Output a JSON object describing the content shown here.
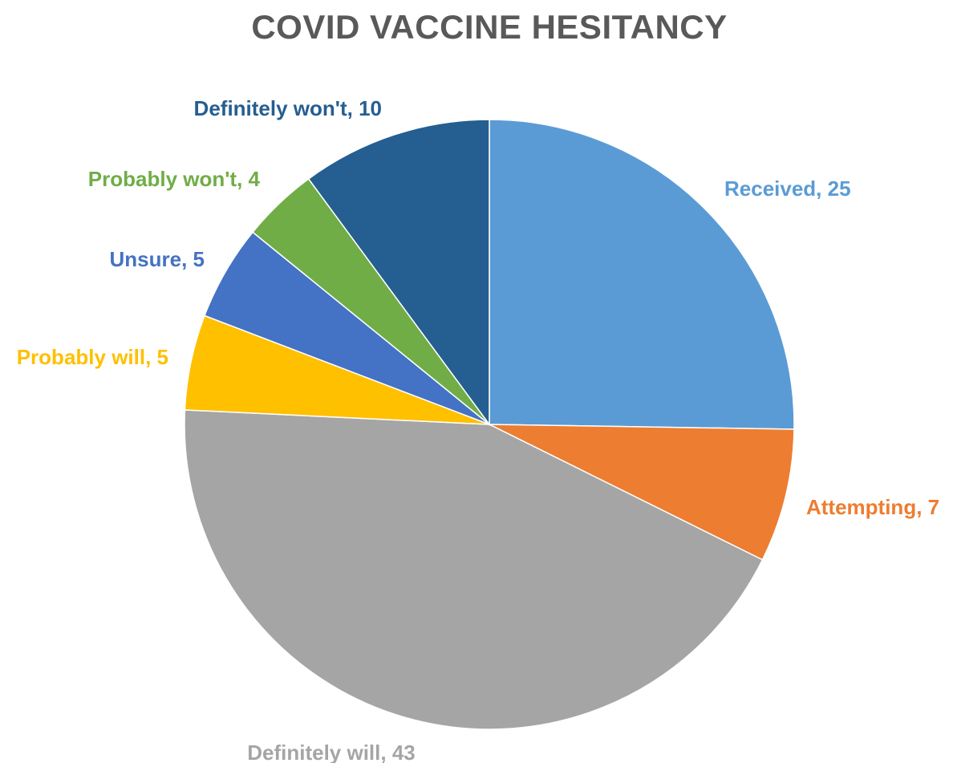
{
  "chart_data": {
    "type": "pie",
    "title": "COVID VACCINE HESITANCY",
    "categories": [
      "Received",
      "Attempting",
      "Definitely will",
      "Probably will",
      "Unsure",
      "Probably won't",
      "Definitely won't"
    ],
    "values": [
      25,
      7,
      43,
      5,
      5,
      4,
      10
    ],
    "labels": [
      "Received, 25",
      "Attempting, 7",
      "Definitely will, 43",
      "Probably will, 5",
      "Unsure, 5",
      "Probably won't, 4",
      "Definitely won't, 10"
    ],
    "colors": [
      "#5B9BD5",
      "#ED7D31",
      "#A5A5A5",
      "#FFC000",
      "#4472C4",
      "#70AD47",
      "#255E91"
    ],
    "label_colors": [
      "#5B9BD5",
      "#ED7D31",
      "#A5A5A5",
      "#FFC000",
      "#4472C4",
      "#70AD47",
      "#255E91"
    ],
    "start_angle_deg": 0,
    "direction": "clockwise",
    "legend": "none"
  }
}
